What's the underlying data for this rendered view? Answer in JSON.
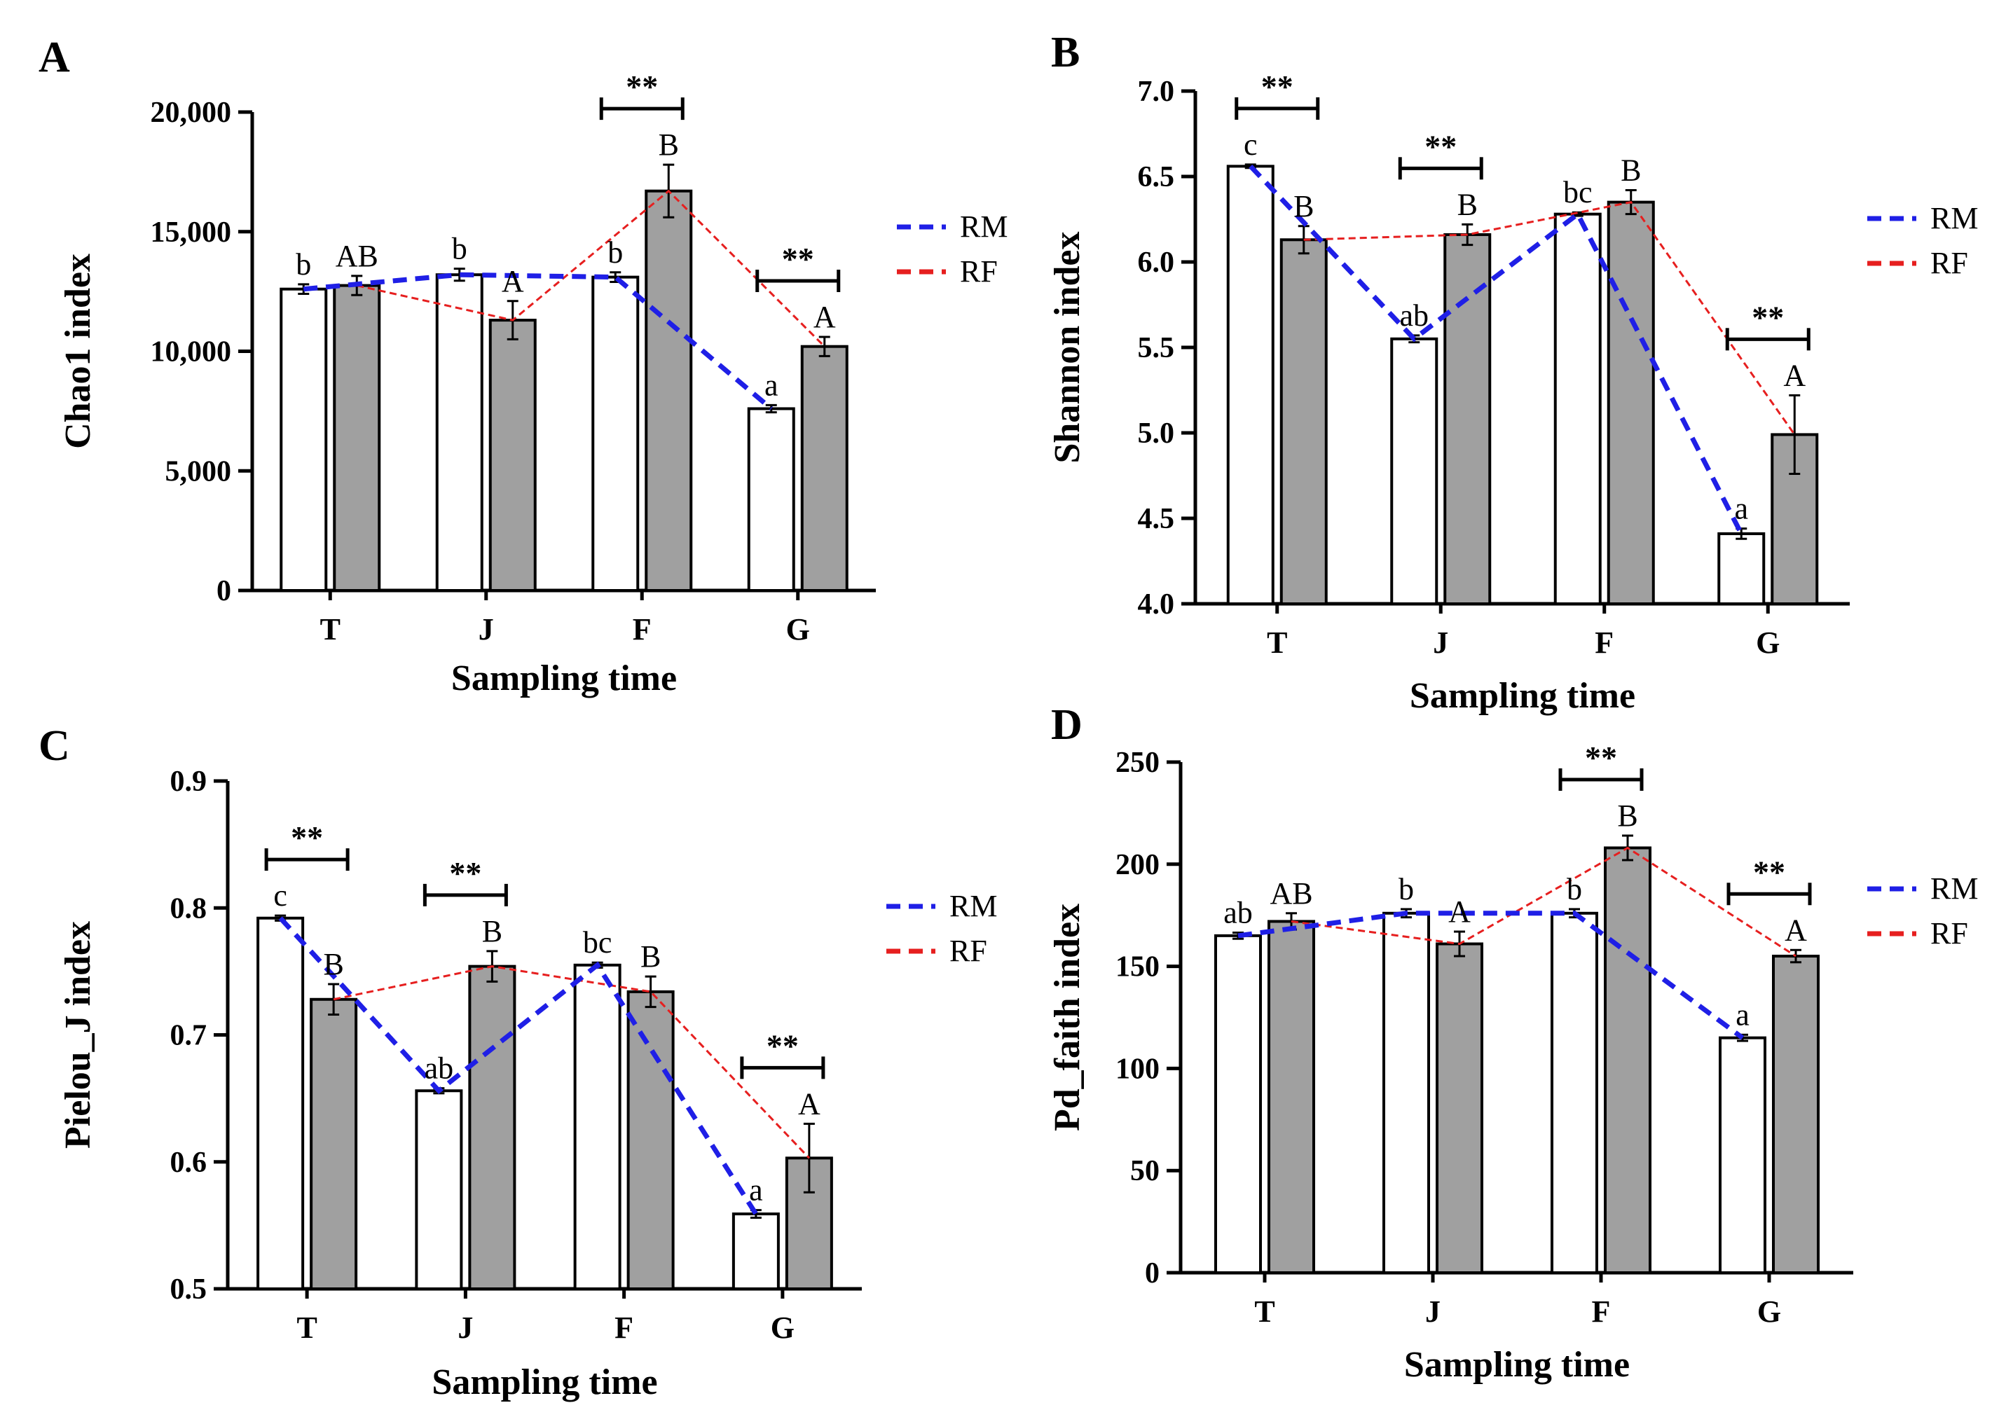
{
  "chart_data": [
    {
      "panel": "A",
      "type": "bar",
      "categories": [
        "T",
        "J",
        "F",
        "G"
      ],
      "xlabel": "Sampling time",
      "ylabel": "Chao1 index",
      "ylim": [
        0,
        20000
      ],
      "yticks": [
        0,
        5000,
        10000,
        15000,
        20000
      ],
      "ytick_labels": [
        "0",
        "5,000",
        "10,000",
        "15,000",
        "20,000"
      ],
      "series": [
        {
          "name": "RM",
          "values": [
            12600,
            13200,
            13100,
            7600
          ],
          "errors": [
            200,
            250,
            200,
            150
          ],
          "letters": [
            "b",
            "b",
            "b",
            "a"
          ]
        },
        {
          "name": "RF",
          "values": [
            12750,
            11300,
            16700,
            10200
          ],
          "errors": [
            400,
            800,
            1100,
            400
          ],
          "letters": [
            "AB",
            "A",
            "B",
            "A"
          ]
        }
      ],
      "significance": [
        {
          "category": "F",
          "label": "**"
        },
        {
          "category": "G",
          "label": "**"
        }
      ],
      "legend": [
        "RM",
        "RF"
      ]
    },
    {
      "panel": "B",
      "type": "bar",
      "categories": [
        "T",
        "J",
        "F",
        "G"
      ],
      "xlabel": "Sampling time",
      "ylabel": "Shannon index",
      "ylim": [
        4.0,
        7.0
      ],
      "yticks": [
        4.0,
        4.5,
        5.0,
        5.5,
        6.0,
        6.5,
        7.0
      ],
      "ytick_labels": [
        "4.0",
        "4.5",
        "5.0",
        "5.5",
        "6.0",
        "6.5",
        "7.0"
      ],
      "series": [
        {
          "name": "RM",
          "values": [
            6.56,
            5.55,
            6.28,
            4.41
          ],
          "errors": [
            0.01,
            0.02,
            0.01,
            0.03
          ],
          "letters": [
            "c",
            "ab",
            "bc",
            "a"
          ]
        },
        {
          "name": "RF",
          "values": [
            6.13,
            6.16,
            6.35,
            4.99
          ],
          "errors": [
            0.08,
            0.06,
            0.07,
            0.23
          ],
          "letters": [
            "B",
            "B",
            "B",
            "A"
          ]
        }
      ],
      "significance": [
        {
          "category": "T",
          "label": "**"
        },
        {
          "category": "J",
          "label": "**"
        },
        {
          "category": "G",
          "label": "**"
        }
      ],
      "legend": [
        "RM",
        "RF"
      ]
    },
    {
      "panel": "C",
      "type": "bar",
      "categories": [
        "T",
        "J",
        "F",
        "G"
      ],
      "xlabel": "Sampling time",
      "ylabel": "Pielou_J index",
      "ylim": [
        0.5,
        0.9
      ],
      "yticks": [
        0.5,
        0.6,
        0.7,
        0.8,
        0.9
      ],
      "ytick_labels": [
        "0.5",
        "0.6",
        "0.7",
        "0.8",
        "0.9"
      ],
      "series": [
        {
          "name": "RM",
          "values": [
            0.792,
            0.656,
            0.755,
            0.559
          ],
          "errors": [
            0.002,
            0.002,
            0.002,
            0.003
          ],
          "letters": [
            "c",
            "ab",
            "bc",
            "a"
          ]
        },
        {
          "name": "RF",
          "values": [
            0.728,
            0.754,
            0.734,
            0.603
          ],
          "errors": [
            0.012,
            0.012,
            0.012,
            0.027
          ],
          "letters": [
            "B",
            "B",
            "B",
            "A"
          ]
        }
      ],
      "significance": [
        {
          "category": "T",
          "label": "**"
        },
        {
          "category": "J",
          "label": "**"
        },
        {
          "category": "G",
          "label": "**"
        }
      ],
      "legend": [
        "RM",
        "RF"
      ]
    },
    {
      "panel": "D",
      "type": "bar",
      "categories": [
        "T",
        "J",
        "F",
        "G"
      ],
      "xlabel": "Sampling time",
      "ylabel": "Pd_faith index",
      "ylim": [
        0,
        250
      ],
      "yticks": [
        0,
        50,
        100,
        150,
        200,
        250
      ],
      "ytick_labels": [
        "0",
        "50",
        "100",
        "150",
        "200",
        "250"
      ],
      "series": [
        {
          "name": "RM",
          "values": [
            165,
            176,
            176,
            115
          ],
          "errors": [
            1.5,
            2,
            2,
            1.5
          ],
          "letters": [
            "ab",
            "b",
            "b",
            "a"
          ]
        },
        {
          "name": "RF",
          "values": [
            172,
            161,
            208,
            155
          ],
          "errors": [
            4,
            6,
            6,
            3
          ],
          "letters": [
            "AB",
            "A",
            "B",
            "A"
          ]
        }
      ],
      "significance": [
        {
          "category": "F",
          "label": "**"
        },
        {
          "category": "G",
          "label": "**"
        }
      ],
      "legend": [
        "RM",
        "RF"
      ]
    }
  ],
  "colors": {
    "rm_line": "#1f1fe6",
    "rf_line": "#e61f1f",
    "rm_bar": "#ffffff",
    "rf_bar": "#a0a0a0",
    "axis": "#000000"
  }
}
